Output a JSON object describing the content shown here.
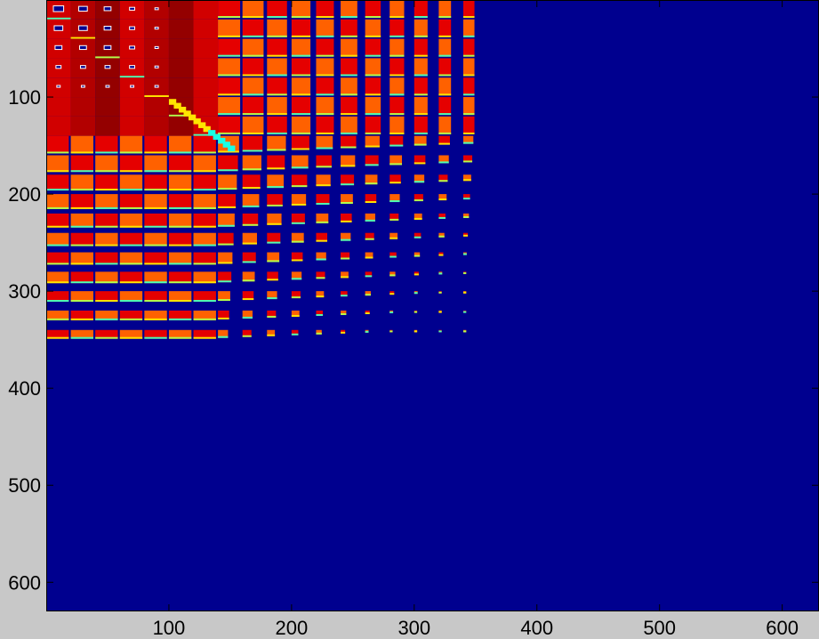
{
  "chart_data": {
    "type": "heatmap",
    "title": "",
    "xlabel": "",
    "ylabel": "",
    "xlim": [
      0,
      630
    ],
    "ylim": [
      630,
      0
    ],
    "x_ticks": [
      100,
      200,
      300,
      400,
      500,
      600
    ],
    "y_ticks": [
      100,
      200,
      300,
      400,
      500,
      600
    ],
    "x_tick_labels": [
      "100",
      "200",
      "300",
      "400",
      "500",
      "600"
    ],
    "y_tick_labels": [
      "100",
      "200",
      "300",
      "400",
      "500",
      "600"
    ],
    "grid": false,
    "colormap": "jet",
    "colors": {
      "background": "#c8c8c8",
      "empty_value": "#00008f",
      "low": "#00ffff",
      "mid": "#ffff00",
      "high": "#ff0000",
      "max_dark": "#9a0000"
    },
    "nonzero_region": {
      "x": [
        0,
        360
      ],
      "y": [
        0,
        360
      ]
    },
    "dense_core": {
      "x": [
        0,
        140
      ],
      "y": [
        0,
        140
      ]
    },
    "block_edges": [
      0,
      20,
      40,
      60,
      80,
      100,
      120,
      140,
      160,
      180,
      200,
      220,
      240,
      260,
      280,
      300,
      320,
      340,
      360
    ],
    "block_fill_start_value": 0.9,
    "block_fill_decay_per_block": 0.085,
    "diagonal_peak_value": 1.0
  }
}
